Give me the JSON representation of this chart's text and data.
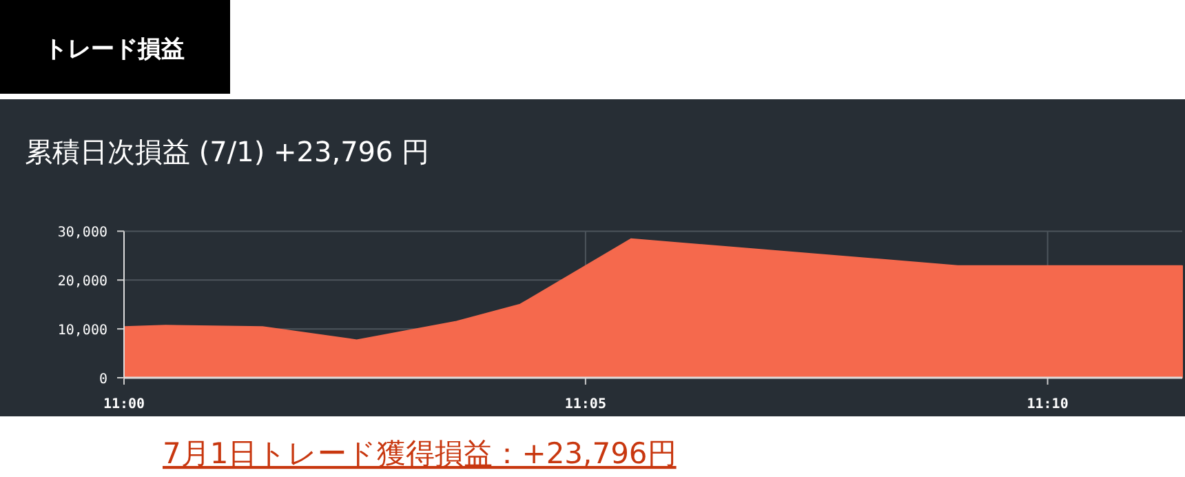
{
  "chart_data": {
    "type": "area",
    "title": "トレード損益",
    "subtitle": "累積日次損益 (7/1) +23,796 円",
    "annotations": [
      "7月1日トレード獲得損益：+23,796円"
    ],
    "x": [
      11.0,
      11.0075,
      11.025,
      11.042,
      11.06,
      11.0715,
      11.0915,
      11.1505,
      11.191
    ],
    "series": [
      {
        "color": "#f5694d",
        "values": [
          10400,
          10700,
          10400,
          7700,
          11500,
          15000,
          28400,
          22900,
          22900
        ]
      }
    ],
    "xlim": [
      11.0,
      11.191
    ],
    "xticks": [
      {
        "value": 11.0,
        "label": "11:00"
      },
      {
        "value": 11.0833,
        "label": "11:05"
      },
      {
        "value": 11.1667,
        "label": "11:10"
      }
    ],
    "ylim": [
      0,
      30000
    ],
    "yticks": [
      {
        "value": 0,
        "label": "0"
      },
      {
        "value": 10000,
        "label": "10,000"
      },
      {
        "value": 20000,
        "label": "20,000"
      },
      {
        "value": 30000,
        "label": "30,000"
      }
    ],
    "grid": true
  }
}
